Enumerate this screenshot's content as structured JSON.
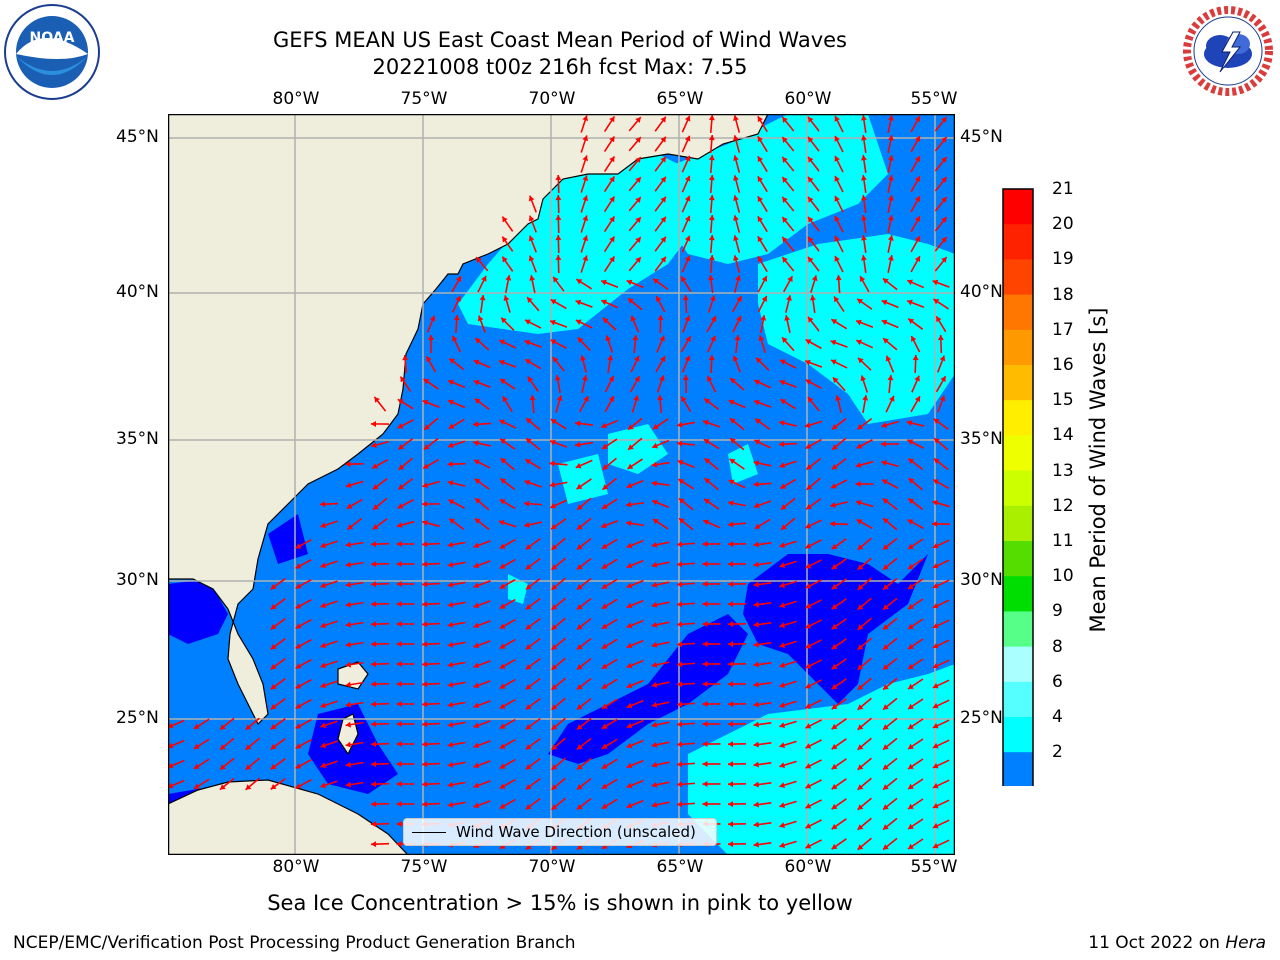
{
  "title": {
    "line1": "GEFS MEAN US East Coast Mean Period of Wind Waves",
    "line2": "20221008 t00z 216h fcst   Max: 7.55"
  },
  "map": {
    "lon_labels": [
      "80°W",
      "75°W",
      "70°W",
      "65°W",
      "60°W",
      "55°W"
    ],
    "lat_labels": [
      "45°N",
      "40°N",
      "35°N",
      "30°N",
      "25°N"
    ],
    "legend_label": "Wind Wave Direction (unscaled)",
    "colors": {
      "land": "#efeedd",
      "ocean_2_4": "#0080ff",
      "ocean_4_6": "#00ffff",
      "ocean_below_2": "#0000ff",
      "arrows": "#ff0000",
      "grid": "#b0b0b0"
    }
  },
  "colorbar": {
    "label": "Mean Period of Wind Waves [s]",
    "ticks": [
      "21",
      "20",
      "19",
      "18",
      "17",
      "16",
      "15",
      "14",
      "13",
      "12",
      "11",
      "10",
      "9",
      "8",
      "6",
      "4",
      "2"
    ],
    "colors": [
      "#ff0000",
      "#ff2200",
      "#ff4400",
      "#ff7700",
      "#ff9900",
      "#ffbb00",
      "#ffee00",
      "#eeff00",
      "#ccff00",
      "#aaee00",
      "#55dd00",
      "#00dd00",
      "#55ff88",
      "#aaffff",
      "#55ffff",
      "#00ffff",
      "#0080ff"
    ],
    "under_color": "#0000ff"
  },
  "note": "Sea Ice Concentration > 15% is shown in pink to yellow",
  "footer": {
    "left": "NCEP/EMC/Verification Post Processing Product Generation Branch",
    "right_text": "11 Oct 2022 on ",
    "right_italic": "Hera"
  },
  "logos": {
    "left": {
      "icon": "noaa-logo",
      "text": "NOAA"
    },
    "right": {
      "icon": "nws-logo",
      "text": "NATIONAL WEATHER SERVICE"
    }
  }
}
